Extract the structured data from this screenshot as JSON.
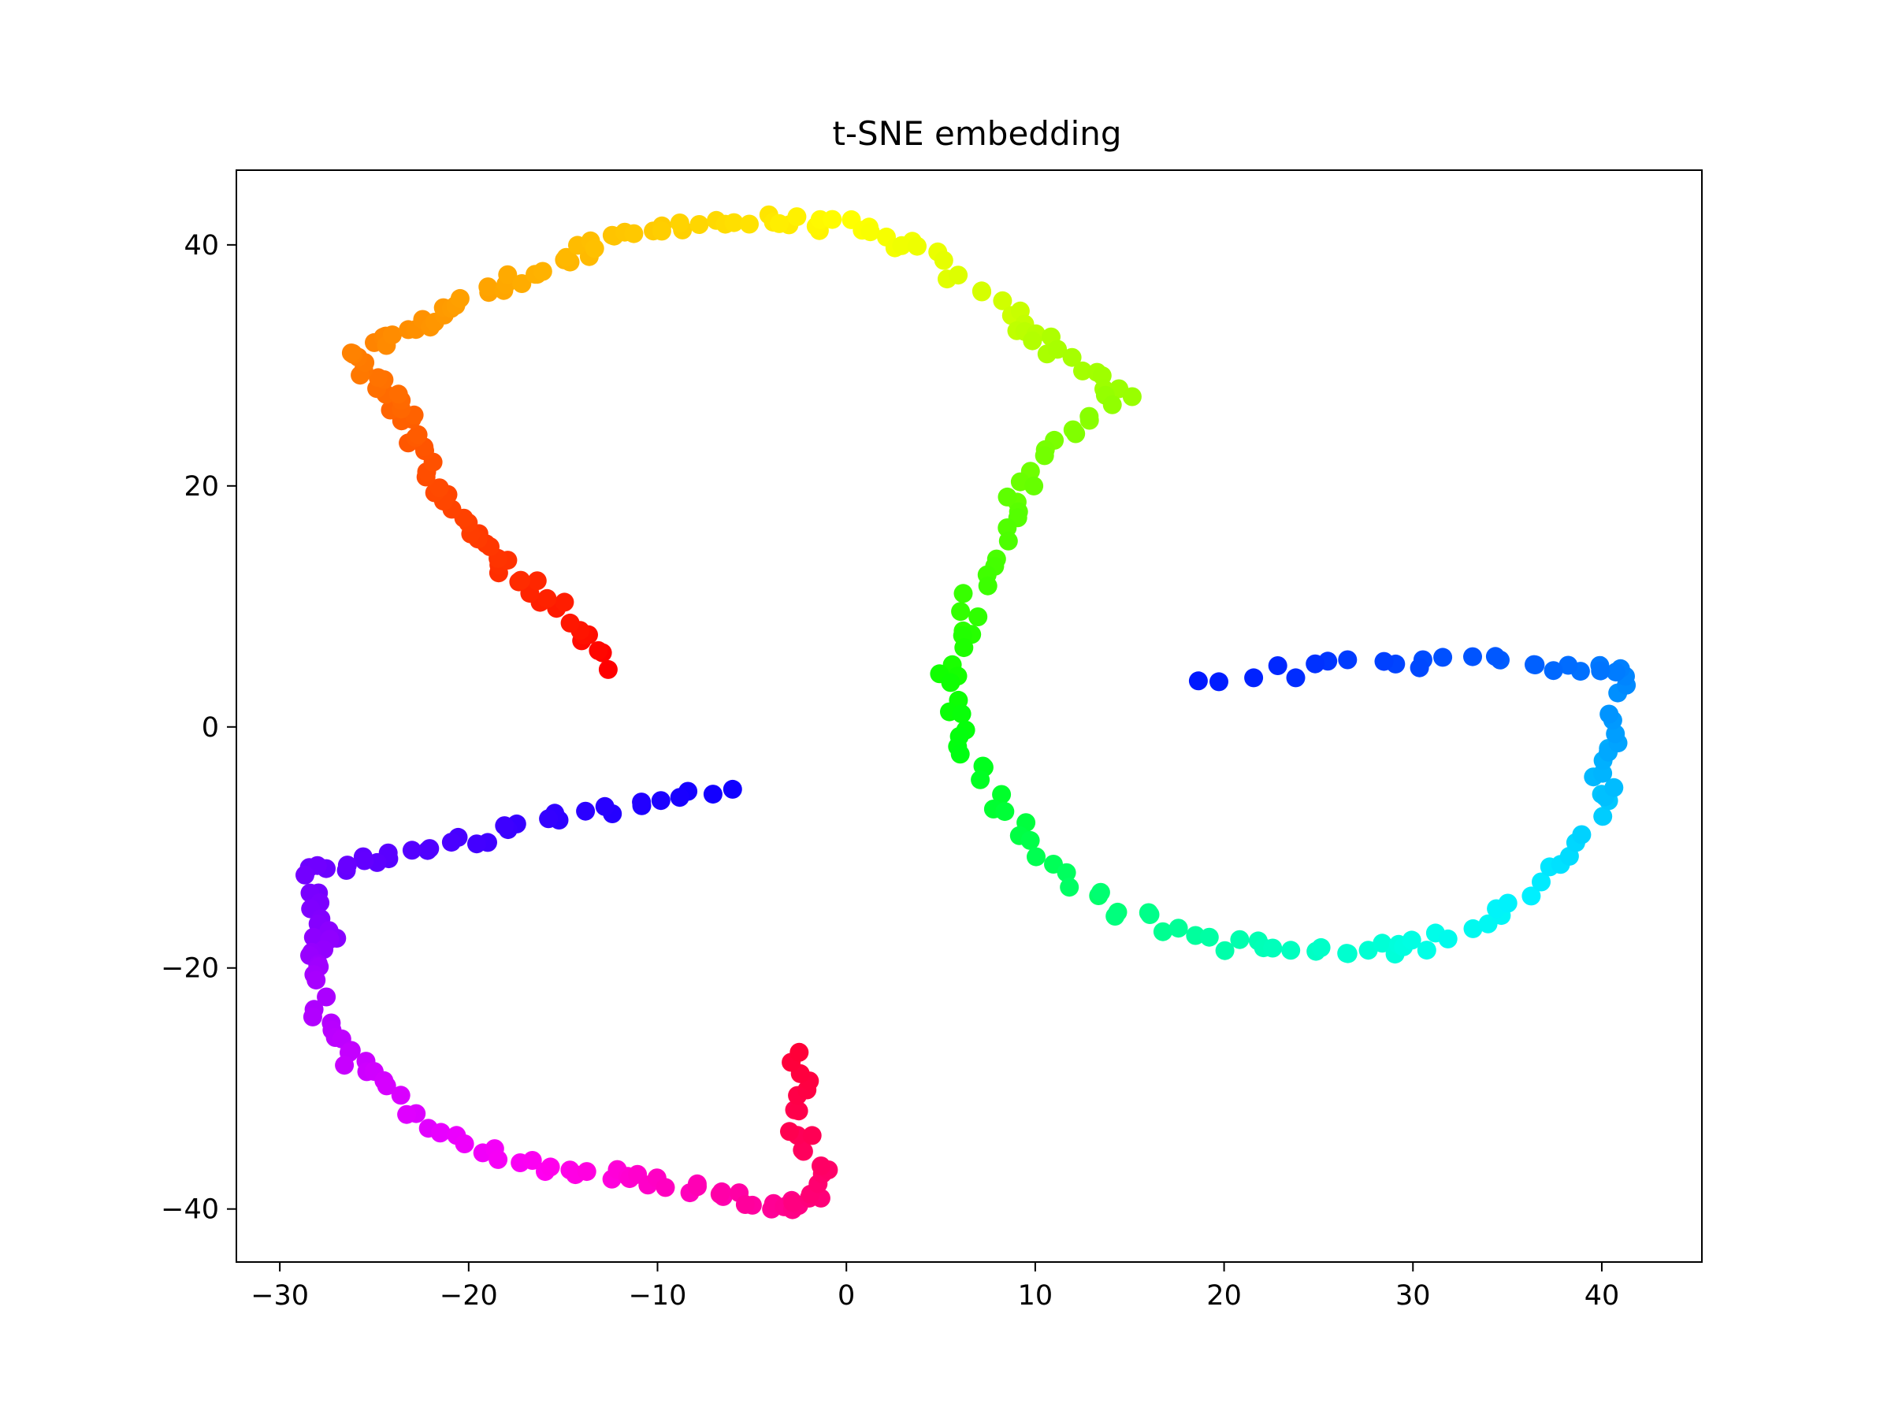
{
  "chart_data": {
    "type": "scatter",
    "title": "t-SNE embedding",
    "xlabel": "",
    "ylabel": "",
    "xlim": [
      -32.3,
      45.3
    ],
    "ylim": [
      -44.4,
      46.2
    ],
    "xticks": [
      -30,
      -20,
      -10,
      0,
      10,
      20,
      30,
      40
    ],
    "yticks": [
      -40,
      -20,
      0,
      20,
      40
    ],
    "xtick_labels": [
      "−30",
      "−20",
      "−10",
      "0",
      "10",
      "20",
      "30",
      "40"
    ],
    "ytick_labels": [
      "−40",
      "−20",
      "0",
      "20",
      "40"
    ],
    "grid": false,
    "legend": "none",
    "colormap": "hsv",
    "color_order": "red → orange → yellow → green → cyan → blue → purple → magenta → pink, along the curve",
    "point_color_stops": [
      {
        "x": -12.8,
        "y": 5.0,
        "color": "#ff0000"
      },
      {
        "x": -15.0,
        "y": 9.5,
        "color": "#ff1a00"
      },
      {
        "x": -18.0,
        "y": 13.0,
        "color": "#ff2e00"
      },
      {
        "x": -20.0,
        "y": 16.5,
        "color": "#ff3d00"
      },
      {
        "x": -22.0,
        "y": 21.0,
        "color": "#ff4c00"
      },
      {
        "x": -23.0,
        "y": 25.0,
        "color": "#ff5e00"
      },
      {
        "x": -24.5,
        "y": 28.0,
        "color": "#ff6f00"
      },
      {
        "x": -26.0,
        "y": 31.0,
        "color": "#ff8000"
      },
      {
        "x": -23.0,
        "y": 33.0,
        "color": "#ff9000"
      },
      {
        "x": -20.0,
        "y": 35.5,
        "color": "#ffa000"
      },
      {
        "x": -16.0,
        "y": 38.0,
        "color": "#ffb000"
      },
      {
        "x": -13.0,
        "y": 40.0,
        "color": "#ffc000"
      },
      {
        "x": -9.0,
        "y": 41.8,
        "color": "#ffd000"
      },
      {
        "x": -4.0,
        "y": 42.0,
        "color": "#ffe800"
      },
      {
        "x": 0.0,
        "y": 41.5,
        "color": "#ffff00"
      },
      {
        "x": 4.0,
        "y": 39.5,
        "color": "#eeff00"
      },
      {
        "x": 8.5,
        "y": 34.5,
        "color": "#ccff00"
      },
      {
        "x": 11.0,
        "y": 31.5,
        "color": "#aaff00"
      },
      {
        "x": 14.8,
        "y": 27.5,
        "color": "#99ff00"
      },
      {
        "x": 10.5,
        "y": 23.0,
        "color": "#77ff00"
      },
      {
        "x": 8.5,
        "y": 17.0,
        "color": "#55ff00"
      },
      {
        "x": 6.5,
        "y": 10.0,
        "color": "#33ff00"
      },
      {
        "x": 5.5,
        "y": 4.0,
        "color": "#11ff00"
      },
      {
        "x": 6.5,
        "y": -2.0,
        "color": "#00ff11"
      },
      {
        "x": 9.5,
        "y": -9.0,
        "color": "#00ff44"
      },
      {
        "x": 14.0,
        "y": -15.0,
        "color": "#00ff77"
      },
      {
        "x": 20.0,
        "y": -18.0,
        "color": "#00ffaa"
      },
      {
        "x": 26.0,
        "y": -18.8,
        "color": "#00ffcc"
      },
      {
        "x": 31.0,
        "y": -18.0,
        "color": "#00ffe6"
      },
      {
        "x": 36.0,
        "y": -14.0,
        "color": "#00f0ff"
      },
      {
        "x": 40.0,
        "y": -6.5,
        "color": "#00c8ff"
      },
      {
        "x": 40.3,
        "y": -1.5,
        "color": "#00a8ff"
      },
      {
        "x": 41.5,
        "y": 4.5,
        "color": "#0080ff"
      },
      {
        "x": 36.0,
        "y": 5.5,
        "color": "#0060ff"
      },
      {
        "x": 28.0,
        "y": 5.3,
        "color": "#0040ff"
      },
      {
        "x": 19.0,
        "y": 4.0,
        "color": "#0018ff"
      },
      {
        "x": -6.5,
        "y": -5.0,
        "color": "#1000ff"
      },
      {
        "x": -13.0,
        "y": -7.0,
        "color": "#2800ff"
      },
      {
        "x": -19.5,
        "y": -9.0,
        "color": "#4000ff"
      },
      {
        "x": -24.5,
        "y": -11.0,
        "color": "#5a00ff"
      },
      {
        "x": -28.5,
        "y": -12.0,
        "color": "#7000ff"
      },
      {
        "x": -27.5,
        "y": -17.0,
        "color": "#8800ff"
      },
      {
        "x": -28.5,
        "y": -19.5,
        "color": "#9d00ff"
      },
      {
        "x": -27.5,
        "y": -25.0,
        "color": "#b800ff"
      },
      {
        "x": -25.5,
        "y": -29.0,
        "color": "#d000ff"
      },
      {
        "x": -21.0,
        "y": -34.0,
        "color": "#e800ff"
      },
      {
        "x": -16.0,
        "y": -36.5,
        "color": "#ff00f0"
      },
      {
        "x": -11.0,
        "y": -37.5,
        "color": "#ff00d0"
      },
      {
        "x": -7.0,
        "y": -38.5,
        "color": "#ff00b0"
      },
      {
        "x": -3.5,
        "y": -40.0,
        "color": "#ff0090"
      },
      {
        "x": -1.0,
        "y": -38.0,
        "color": "#ff0070"
      },
      {
        "x": -2.5,
        "y": -33.0,
        "color": "#ff0050"
      },
      {
        "x": -2.5,
        "y": -27.0,
        "color": "#ff0038"
      }
    ],
    "points_per_segment": 8,
    "jitter": 0.6
  }
}
